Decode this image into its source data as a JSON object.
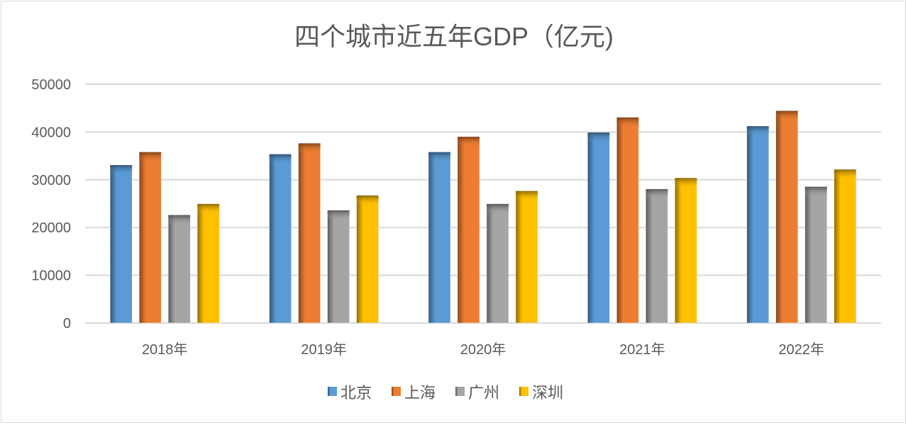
{
  "chart_data": {
    "type": "bar",
    "title": "四个城市近五年GDP（亿元)",
    "categories": [
      "2018年",
      "2019年",
      "2020年",
      "2021年",
      "2022年"
    ],
    "ylim": [
      0,
      50000
    ],
    "yticks": [
      "0",
      "10000",
      "20000",
      "30000",
      "40000",
      "50000"
    ],
    "grid": true,
    "legend_position": "bottom",
    "series": [
      {
        "name": "北京",
        "color": "#5b9bd5",
        "values": [
          33080,
          35360,
          35800,
          39900,
          41230
        ]
      },
      {
        "name": "上海",
        "color": "#ed7d31",
        "values": [
          35800,
          37630,
          39010,
          43060,
          44440
        ]
      },
      {
        "name": "广州",
        "color": "#a5a5a5",
        "values": [
          22620,
          23600,
          24940,
          28050,
          28540
        ]
      },
      {
        "name": "深圳",
        "color": "#ffc000",
        "values": [
          24940,
          26710,
          27650,
          30370,
          32150
        ]
      }
    ]
  }
}
